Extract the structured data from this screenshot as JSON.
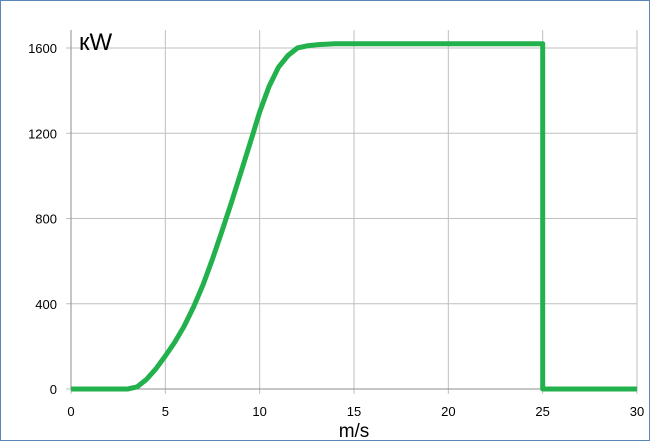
{
  "chart_data": {
    "type": "line",
    "title": "",
    "xlabel": "m/s",
    "ylabel": "кW",
    "xlim": [
      0,
      30
    ],
    "ylim": [
      0,
      1600
    ],
    "grid": true,
    "x_ticks": [
      "0",
      "5",
      "10",
      "15",
      "20",
      "25",
      "30"
    ],
    "y_ticks": [
      "0",
      "400",
      "800",
      "1200",
      "1600"
    ],
    "line_color": "#22b14c",
    "series": [
      {
        "x": [
          0,
          3,
          3.5,
          4,
          4.5,
          5,
          5.5,
          6,
          6.5,
          7,
          7.5,
          8,
          8.5,
          9,
          9.5,
          10,
          10.5,
          11,
          11.5,
          12,
          12.5,
          13,
          14,
          15,
          16,
          17,
          18,
          19,
          20,
          21,
          22,
          23,
          24,
          25,
          25,
          30
        ],
        "y": [
          0,
          0,
          10,
          45,
          95,
          155,
          220,
          295,
          385,
          490,
          610,
          740,
          875,
          1015,
          1155,
          1300,
          1420,
          1510,
          1565,
          1600,
          1610,
          1615,
          1620,
          1620,
          1620,
          1620,
          1620,
          1620,
          1620,
          1620,
          1620,
          1620,
          1620,
          1620,
          0,
          0
        ]
      }
    ]
  }
}
